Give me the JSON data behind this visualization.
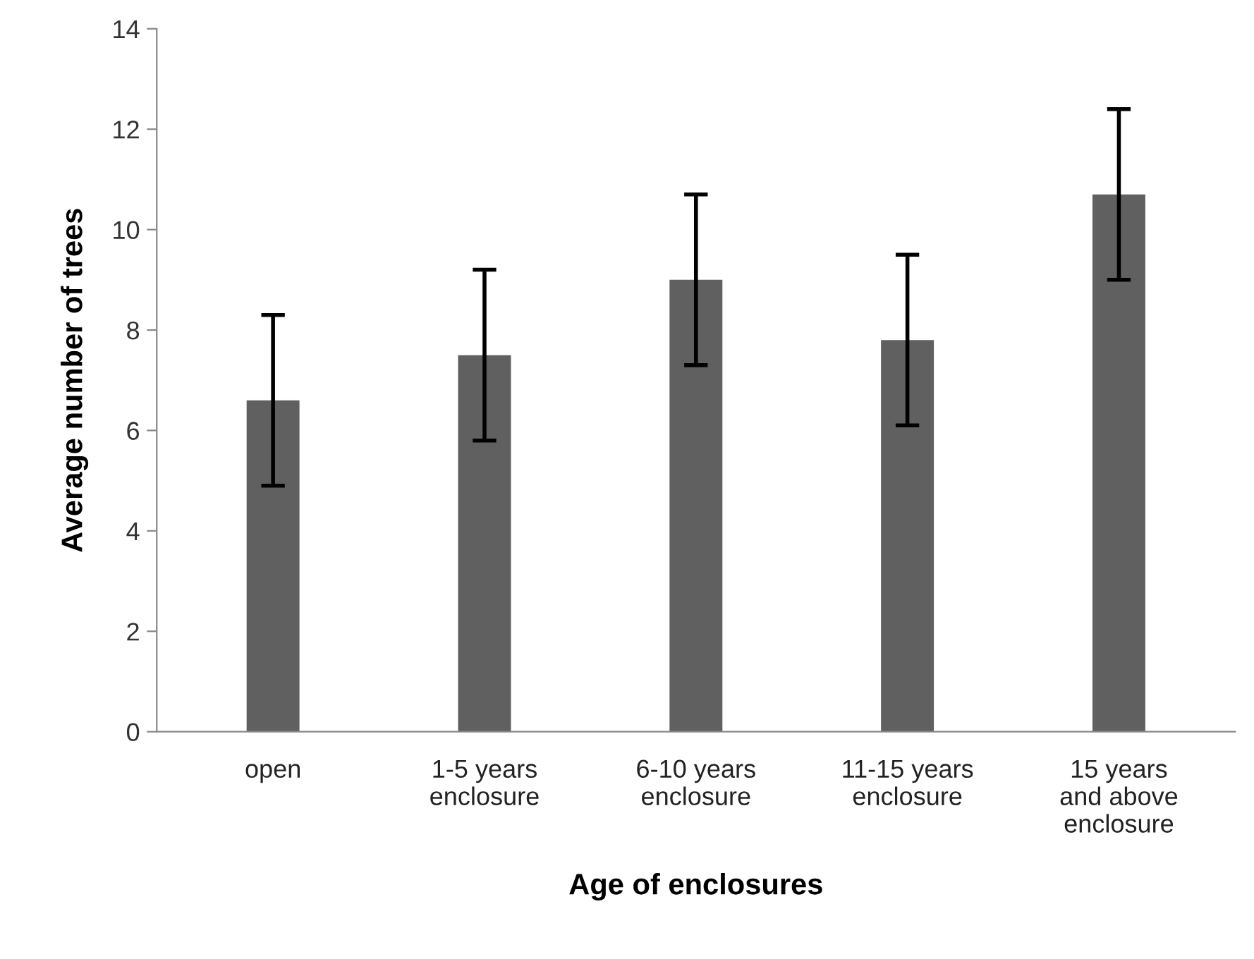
{
  "chart_data": {
    "type": "bar",
    "xlabel": "Age of enclosures",
    "ylabel": "Average number of trees",
    "categories": [
      "open",
      "1-5 years\nenclosure",
      "6-10 years\nenclosure",
      "11-15 years\nenclosure",
      "15 years\nand above\nenclosure"
    ],
    "values": [
      6.6,
      7.5,
      9.0,
      7.8,
      10.7
    ],
    "errors": [
      1.7,
      1.7,
      1.7,
      1.7,
      1.7
    ],
    "color": "#606060",
    "ylim": [
      0,
      14
    ],
    "yticks": [
      0,
      2,
      4,
      6,
      8,
      10,
      12,
      14
    ],
    "grid": false,
    "legend": false
  }
}
